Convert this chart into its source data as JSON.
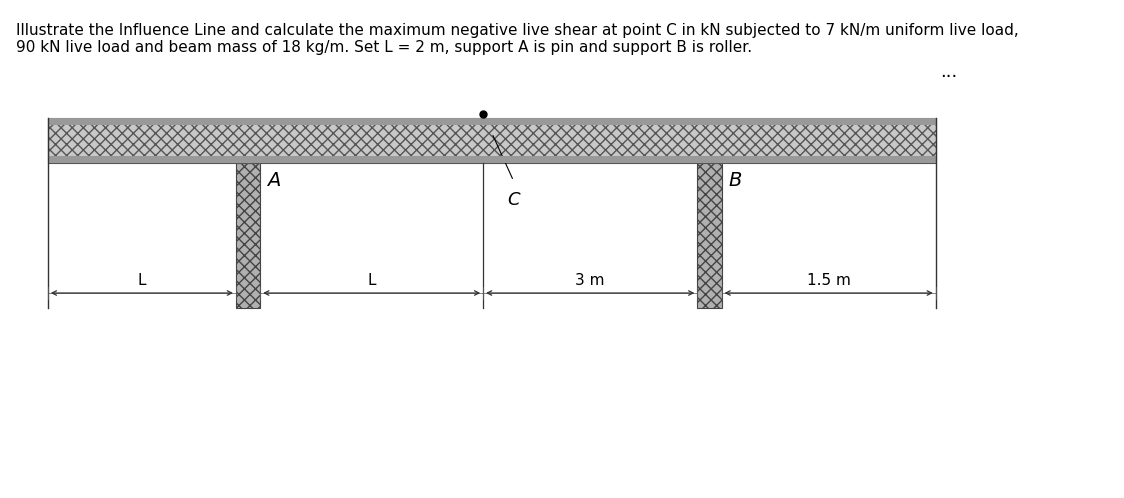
{
  "title_text": "Illustrate the Influence Line and calculate the maximum negative live shear at point C in kN subjected to 7 kN/m uniform live load,\n90 kN live load and beam mass of 18 kg/m. Set L = 2 m, support A is pin and support B is roller.",
  "title_fontsize": 11,
  "background_color": "#ffffff",
  "beam_color": "#888888",
  "support_color": "#aaaaaa",
  "dots_text": "...",
  "label_A": "A",
  "label_B": "B",
  "label_C": "C",
  "dim_L1": "L",
  "dim_L2": "L",
  "dim_3m": "3 m",
  "dim_15m": "1.5 m"
}
